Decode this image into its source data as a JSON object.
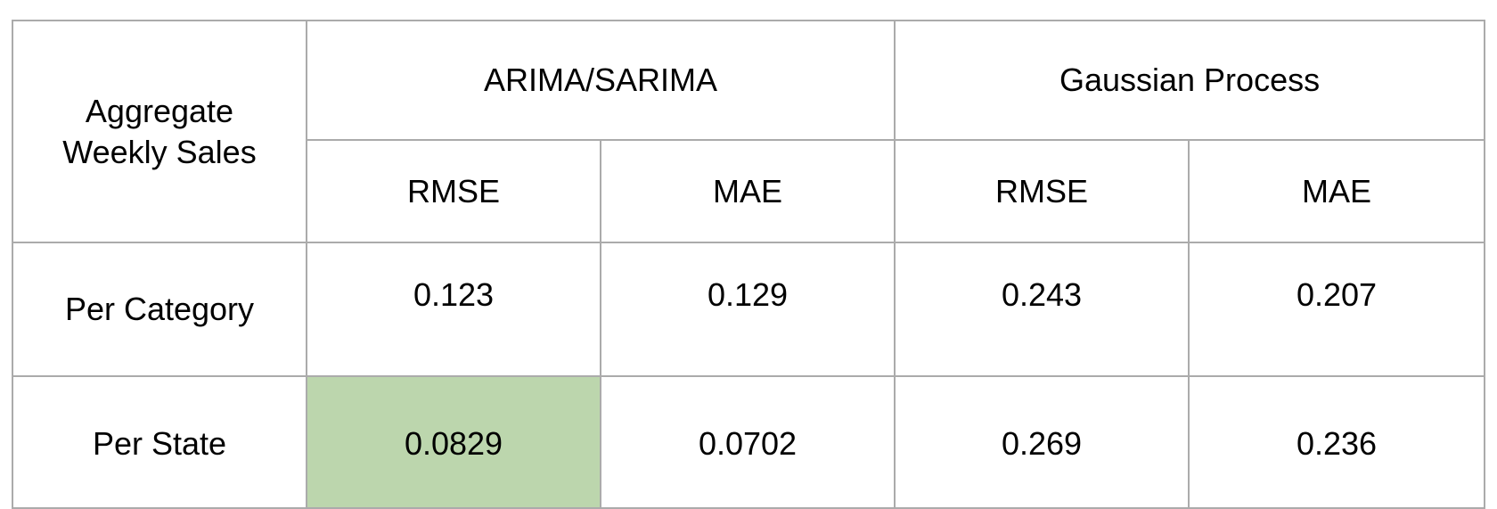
{
  "table": {
    "corner_label_line1": "Aggregate",
    "corner_label_line2": "Weekly Sales",
    "groups": [
      "ARIMA/SARIMA",
      "Gaussian Process"
    ],
    "metrics": [
      "RMSE",
      "MAE",
      "RMSE",
      "MAE"
    ],
    "rows": [
      {
        "label": "Per Category",
        "values": [
          "0.123",
          "0.129",
          "0.243",
          "0.207"
        ]
      },
      {
        "label": "Per State",
        "values": [
          "0.0829",
          "0.0702",
          "0.269",
          "0.236"
        ]
      }
    ],
    "highlight_color": "#bcd6ad",
    "highlighted_cell": "Per State / ARIMA/SARIMA / RMSE"
  }
}
